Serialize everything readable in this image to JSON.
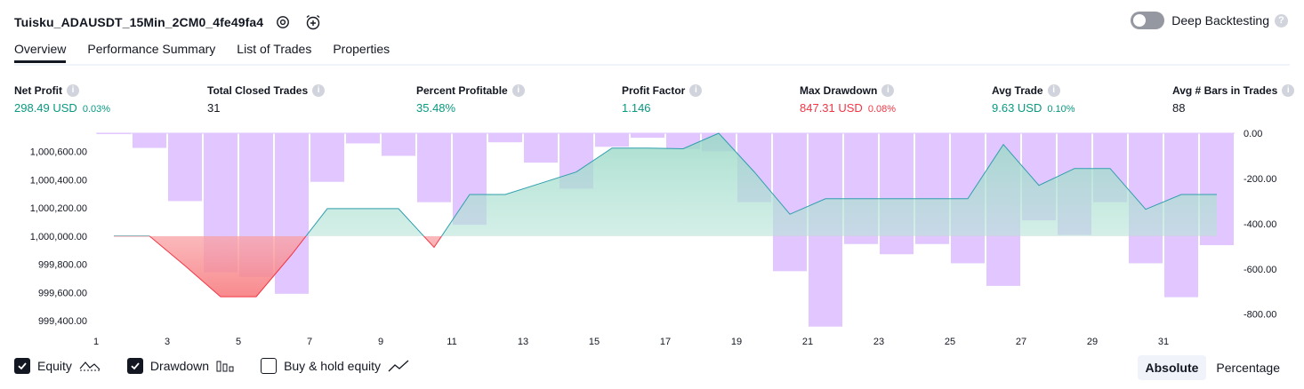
{
  "header": {
    "strategy_name": "Tuisku_ADAUSDT_15Min_2CM0_4fe49fa4",
    "deep_backtesting_label": "Deep Backtesting",
    "deep_backtesting_enabled": false,
    "help_glyph": "?"
  },
  "tabs": [
    {
      "label": "Overview",
      "active": true
    },
    {
      "label": "Performance Summary",
      "active": false
    },
    {
      "label": "List of Trades",
      "active": false
    },
    {
      "label": "Properties",
      "active": false
    }
  ],
  "metrics": {
    "net_profit": {
      "label": "Net Profit",
      "value": "298.49 USD",
      "pct": "0.03%"
    },
    "total_closed_trades": {
      "label": "Total Closed Trades",
      "value": "31"
    },
    "percent_profitable": {
      "label": "Percent Profitable",
      "value": "35.48%"
    },
    "profit_factor": {
      "label": "Profit Factor",
      "value": "1.146"
    },
    "max_drawdown": {
      "label": "Max Drawdown",
      "value": "847.31 USD",
      "pct": "0.08%"
    },
    "avg_trade": {
      "label": "Avg Trade",
      "value": "9.63 USD",
      "pct": "0.10%"
    },
    "avg_bars": {
      "label": "Avg # Bars in Trades",
      "value": "88"
    }
  },
  "legend": {
    "equity": {
      "label": "Equity",
      "checked": true
    },
    "drawdown": {
      "label": "Drawdown",
      "checked": true
    },
    "buy_hold": {
      "label": "Buy & hold equity",
      "checked": false
    }
  },
  "modes": {
    "absolute": "Absolute",
    "percentage": "Percentage",
    "selected": "Absolute"
  },
  "colors": {
    "positive": "#089981",
    "negative": "#f23645",
    "drawdown_bar": "#e1c6ff",
    "equity_line": "#2f9fae",
    "equity_fill_positive": "#c8ebe1",
    "equity_fill_negative": "#f77c80"
  },
  "chart_data": {
    "type": "bar+area",
    "x": [
      1,
      2,
      3,
      4,
      5,
      6,
      7,
      8,
      9,
      10,
      11,
      12,
      13,
      14,
      15,
      16,
      17,
      18,
      19,
      20,
      21,
      22,
      23,
      24,
      25,
      26,
      27,
      28,
      29,
      30,
      31,
      32
    ],
    "x_tick_labels": [
      "1",
      "3",
      "5",
      "7",
      "9",
      "11",
      "13",
      "15",
      "17",
      "19",
      "21",
      "23",
      "25",
      "27",
      "29",
      "31"
    ],
    "equity_axis": {
      "side": "left",
      "ylim": [
        999350,
        1000730
      ],
      "tick_labels": [
        "1,000,600.00",
        "1,000,400.00",
        "1,000,200.00",
        "1,000,000.00",
        "999,800.00",
        "999,600.00",
        "999,400.00"
      ],
      "baseline": 1000000
    },
    "drawdown_axis": {
      "side": "right",
      "ylim": [
        -860,
        0
      ],
      "tick_labels": [
        "0.00",
        "-200.00",
        "-400.00",
        "-600.00",
        "-800.00"
      ]
    },
    "series": [
      {
        "name": "Equity",
        "values": [
          1000000,
          1000000,
          999790,
          999570,
          999570,
          999870,
          1000195,
          1000195,
          1000195,
          999920,
          1000295,
          1000295,
          1000375,
          1000455,
          1000625,
          1000625,
          1000620,
          1000730,
          1000455,
          1000155,
          1000265,
          1000265,
          1000265,
          1000265,
          1000265,
          1000650,
          1000360,
          1000480,
          1000480,
          1000190,
          1000295,
          1000295
        ]
      },
      {
        "name": "Drawdown",
        "values": [
          0,
          -65,
          -300,
          -615,
          -635,
          -710,
          -215,
          -45,
          -100,
          -305,
          -405,
          -40,
          -130,
          -245,
          -60,
          -20,
          -70,
          -80,
          -305,
          -610,
          -855,
          -490,
          -535,
          -490,
          -575,
          -675,
          -385,
          -450,
          -305,
          -575,
          -725,
          -495
        ]
      }
    ]
  }
}
